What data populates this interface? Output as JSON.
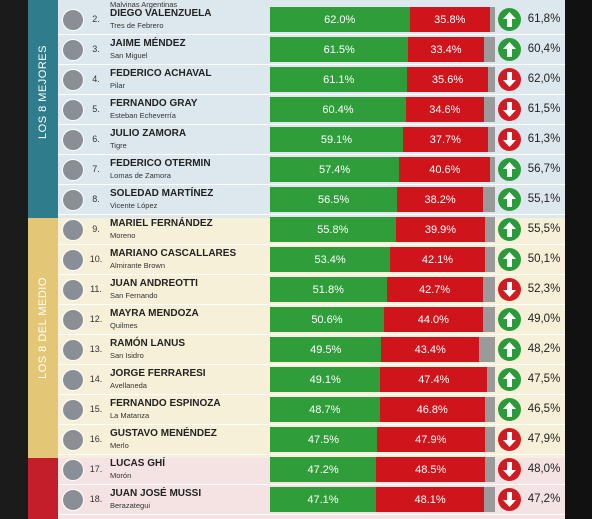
{
  "top_cut_text": "Malvinas Argentinas",
  "groups": [
    {
      "label": "LOS 8 MEJORES"
    },
    {
      "label": "LOS 8 DEL MEDIO"
    }
  ],
  "rows": [
    {
      "rank": "2.",
      "name": "DIEGO VALENZUELA",
      "place": "Tres de Febrero",
      "approval": 62.0,
      "approval_label": "62.0%",
      "disapproval": 35.8,
      "disapproval_label": "35.8%",
      "trend": "up",
      "previous": "61,8%"
    },
    {
      "rank": "3.",
      "name": "JAIME MÉNDEZ",
      "place": "San Miguel",
      "approval": 61.5,
      "approval_label": "61.5%",
      "disapproval": 33.4,
      "disapproval_label": "33.4%",
      "trend": "up",
      "previous": "60,4%"
    },
    {
      "rank": "4.",
      "name": "FEDERICO ACHAVAL",
      "place": "Pilar",
      "approval": 61.1,
      "approval_label": "61.1%",
      "disapproval": 35.6,
      "disapproval_label": "35.6%",
      "trend": "down",
      "previous": "62,0%"
    },
    {
      "rank": "5.",
      "name": "FERNANDO GRAY",
      "place": "Esteban Echeverría",
      "approval": 60.4,
      "approval_label": "60.4%",
      "disapproval": 34.6,
      "disapproval_label": "34.6%",
      "trend": "down",
      "previous": "61,5%"
    },
    {
      "rank": "6.",
      "name": "JULIO ZAMORA",
      "place": "Tigre",
      "approval": 59.1,
      "approval_label": "59.1%",
      "disapproval": 37.7,
      "disapproval_label": "37.7%",
      "trend": "down",
      "previous": "61,3%"
    },
    {
      "rank": "7.",
      "name": "FEDERICO OTERMIN",
      "place": "Lomas de Zamora",
      "approval": 57.4,
      "approval_label": "57.4%",
      "disapproval": 40.6,
      "disapproval_label": "40.6%",
      "trend": "up",
      "previous": "56,7%"
    },
    {
      "rank": "8.",
      "name": "SOLEDAD MARTÍNEZ",
      "place": "Vicente López",
      "approval": 56.5,
      "approval_label": "56.5%",
      "disapproval": 38.2,
      "disapproval_label": "38.2%",
      "trend": "up",
      "previous": "55,1%"
    },
    {
      "rank": "9.",
      "name": "MARIEL FERNÁNDEZ",
      "place": "Moreno",
      "approval": 55.8,
      "approval_label": "55.8%",
      "disapproval": 39.9,
      "disapproval_label": "39.9%",
      "trend": "up",
      "previous": "55,5%"
    },
    {
      "rank": "10.",
      "name": "MARIANO CASCALLARES",
      "place": "Almirante Brown",
      "approval": 53.4,
      "approval_label": "53.4%",
      "disapproval": 42.1,
      "disapproval_label": "42.1%",
      "trend": "up",
      "previous": "50,1%"
    },
    {
      "rank": "11.",
      "name": "JUAN ANDREOTTI",
      "place": "San Fernando",
      "approval": 51.8,
      "approval_label": "51.8%",
      "disapproval": 42.7,
      "disapproval_label": "42.7%",
      "trend": "down",
      "previous": "52,3%"
    },
    {
      "rank": "12.",
      "name": "MAYRA MENDOZA",
      "place": "Quilmes",
      "approval": 50.6,
      "approval_label": "50.6%",
      "disapproval": 44.0,
      "disapproval_label": "44.0%",
      "trend": "up",
      "previous": "49,0%"
    },
    {
      "rank": "13.",
      "name": "RAMÓN LANUS",
      "place": "San Isidro",
      "approval": 49.5,
      "approval_label": "49.5%",
      "disapproval": 43.4,
      "disapproval_label": "43.4%",
      "trend": "up",
      "previous": "48,2%"
    },
    {
      "rank": "14.",
      "name": "JORGE FERRARESI",
      "place": "Avellaneda",
      "approval": 49.1,
      "approval_label": "49.1%",
      "disapproval": 47.4,
      "disapproval_label": "47.4%",
      "trend": "up",
      "previous": "47,5%"
    },
    {
      "rank": "15.",
      "name": "FERNANDO ESPINOZA",
      "place": "La Matanza",
      "approval": 48.7,
      "approval_label": "48.7%",
      "disapproval": 46.8,
      "disapproval_label": "46.8%",
      "trend": "up",
      "previous": "46,5%"
    },
    {
      "rank": "16.",
      "name": "GUSTAVO MENÉNDEZ",
      "place": "Merlo",
      "approval": 47.5,
      "approval_label": "47.5%",
      "disapproval": 47.9,
      "disapproval_label": "47.9%",
      "trend": "down",
      "previous": "47,9%"
    },
    {
      "rank": "17.",
      "name": "LUCAS GHÍ",
      "place": "Morón",
      "approval": 47.2,
      "approval_label": "47.2%",
      "disapproval": 48.5,
      "disapproval_label": "48.5%",
      "trend": "down",
      "previous": "48,0%"
    },
    {
      "rank": "18.",
      "name": "JUAN JOSÉ MUSSI",
      "place": "Berazategui",
      "approval": 47.1,
      "approval_label": "47.1%",
      "disapproval": 48.1,
      "disapproval_label": "48.1%",
      "trend": "down",
      "previous": "47,2%"
    }
  ]
}
